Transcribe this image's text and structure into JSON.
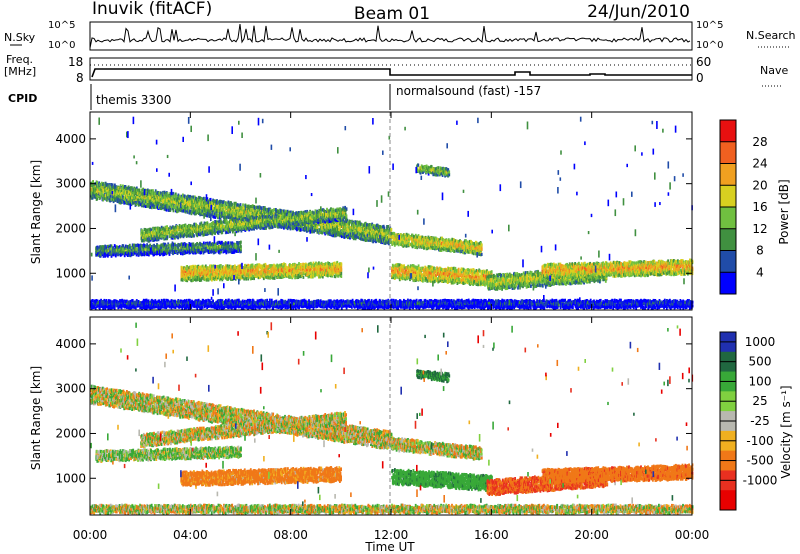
{
  "header": {
    "title_left": "Inuvik (fitACF)",
    "title_center": "Beam 01",
    "title_right": "24/Jun/2010"
  },
  "params": {
    "nsky_label": "N.Sky",
    "nsky_ticks": [
      "10^5",
      "10^0"
    ],
    "nsearch_label": "N.Search",
    "nsearch_ticks": [
      "10^5",
      "10^0"
    ],
    "freq_label_1": "Freq.",
    "freq_label_2": "[MHz]",
    "freq_ticks": [
      "18",
      "8"
    ],
    "nave_label": "Nave",
    "nave_ticks": [
      "60",
      "0"
    ],
    "cpid_label": "CPID",
    "cpid_1": "themis 3300",
    "cpid_2": "normalsound (fast) -157"
  },
  "x_ticks": [
    "00:00",
    "04:00",
    "08:00",
    "12:00",
    "16:00",
    "20:00",
    "00:00"
  ],
  "xlabel": "Time UT",
  "chart_data": [
    {
      "type": "heatmap",
      "title": "",
      "xlabel": "Time UT",
      "ylabel": "Slant Range [km]",
      "xlim": [
        0,
        24
      ],
      "ylim": [
        180,
        4600
      ],
      "y_ticks": [
        "4000",
        "3000",
        "2000",
        "1000"
      ],
      "colorbar_label": "Power [dB]",
      "colorbar_ticks": [
        "28",
        "24",
        "20",
        "16",
        "12",
        "8",
        "4"
      ],
      "colors": [
        "#e81010",
        "#f06020",
        "#f0a020",
        "#d8d020",
        "#70c040",
        "#409040",
        "#204ca8",
        "#0000ff"
      ],
      "echo_bands": [
        {
          "t": [
            0.0,
            12.0
          ],
          "r": [
            2880,
            1850
          ],
          "width": 380,
          "power": 16
        },
        {
          "t": [
            2.0,
            10.2
          ],
          "r": [
            1850,
            2350
          ],
          "width": 260,
          "power": 16
        },
        {
          "t": [
            0.2,
            6.0
          ],
          "r": [
            1500,
            1600
          ],
          "width": 220,
          "power": 12
        },
        {
          "t": [
            3.6,
            10.0
          ],
          "r": [
            1000,
            1100
          ],
          "width": 300,
          "power": 22
        },
        {
          "t": [
            12.0,
            15.6
          ],
          "r": [
            1780,
            1560
          ],
          "width": 260,
          "power": 20
        },
        {
          "t": [
            12.0,
            16.0
          ],
          "r": [
            1050,
            900
          ],
          "width": 320,
          "power": 22
        },
        {
          "t": [
            15.8,
            20.6
          ],
          "r": [
            800,
            1000
          ],
          "width": 320,
          "power": 18
        },
        {
          "t": [
            18.0,
            24.0
          ],
          "r": [
            1050,
            1150
          ],
          "width": 300,
          "power": 22
        },
        {
          "t": [
            13.0,
            14.3
          ],
          "r": [
            3350,
            3250
          ],
          "width": 160,
          "power": 16
        },
        {
          "t": [
            0.0,
            24.0
          ],
          "r": [
            320,
            320
          ],
          "width": 160,
          "power": 6
        }
      ]
    },
    {
      "type": "heatmap",
      "title": "",
      "xlabel": "Time UT",
      "ylabel": "Slant Range [km]",
      "xlim": [
        0,
        24
      ],
      "ylim": [
        180,
        4600
      ],
      "y_ticks": [
        "4000",
        "3000",
        "2000",
        "1000"
      ],
      "colorbar_label": "Velocity [m s⁻¹]",
      "colorbar_ticks": [
        "1000",
        "500",
        "100",
        "25",
        "-25",
        "-100",
        "-500",
        "-1000"
      ],
      "colors": [
        "#2030b0",
        "#206840",
        "#38a838",
        "#80d040",
        "#b8b8b0",
        "#f0b020",
        "#f07818",
        "#e83020",
        "#e80000"
      ],
      "echo_bands": [
        {
          "t": [
            0.0,
            12.0
          ],
          "r": [
            2880,
            1850
          ],
          "width": 380,
          "velocity": 0
        },
        {
          "t": [
            2.0,
            10.2
          ],
          "r": [
            1850,
            2350
          ],
          "width": 260,
          "velocity": 0
        },
        {
          "t": [
            0.2,
            6.0
          ],
          "r": [
            1500,
            1600
          ],
          "width": 220,
          "velocity": 60
        },
        {
          "t": [
            3.6,
            10.0
          ],
          "r": [
            1000,
            1100
          ],
          "width": 300,
          "velocity": -150
        },
        {
          "t": [
            12.0,
            15.6
          ],
          "r": [
            1780,
            1560
          ],
          "width": 260,
          "velocity": 0
        },
        {
          "t": [
            12.0,
            16.0
          ],
          "r": [
            1050,
            900
          ],
          "width": 320,
          "velocity": 200
        },
        {
          "t": [
            15.8,
            20.6
          ],
          "r": [
            800,
            1000
          ],
          "width": 320,
          "velocity": -300
        },
        {
          "t": [
            18.0,
            24.0
          ],
          "r": [
            1050,
            1150
          ],
          "width": 300,
          "velocity": -200
        },
        {
          "t": [
            13.0,
            14.3
          ],
          "r": [
            3350,
            3250
          ],
          "width": 160,
          "velocity": 300
        },
        {
          "t": [
            0.0,
            24.0
          ],
          "r": [
            320,
            320
          ],
          "width": 160,
          "velocity": 0
        }
      ]
    }
  ]
}
